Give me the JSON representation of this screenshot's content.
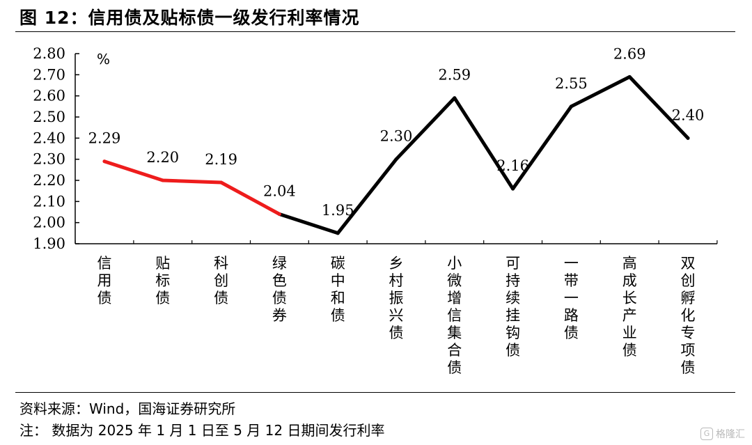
{
  "title": "图 12：信用债及贴标债一级发行利率情况",
  "notes": {
    "source": "资料来源：Wind，国海证券研究所",
    "remark": "注：  数据为 2025 年 1 月 1 日至 5 月 12 日期间发行利率"
  },
  "watermark": "格隆汇",
  "colors": {
    "red_segment": "#ee1c1c",
    "black_segment": "#000000"
  },
  "chart_data": {
    "type": "line",
    "ylabel": "%",
    "ylim": [
      1.9,
      2.8
    ],
    "yticks": [
      "2.80",
      "2.70",
      "2.60",
      "2.50",
      "2.40",
      "2.30",
      "2.20",
      "2.10",
      "2.00",
      "1.90"
    ],
    "grid": false,
    "categories": [
      "信用债",
      "贴标债",
      "科创债",
      "绿色债券",
      "碳中和债",
      "乡村振兴债",
      "小微增信集合债",
      "可持续挂钩债",
      "一带一路债",
      "高成长产业债",
      "双创孵化专项债"
    ],
    "values": [
      2.29,
      2.2,
      2.19,
      2.04,
      1.95,
      2.3,
      2.59,
      2.16,
      2.55,
      2.69,
      2.4
    ],
    "data_labels": [
      "2.29",
      "2.20",
      "2.19",
      "2.04",
      "1.95",
      "2.30",
      "2.59",
      "2.16",
      "2.55",
      "2.69",
      "2.40"
    ],
    "red_segment_until_index": 3
  }
}
